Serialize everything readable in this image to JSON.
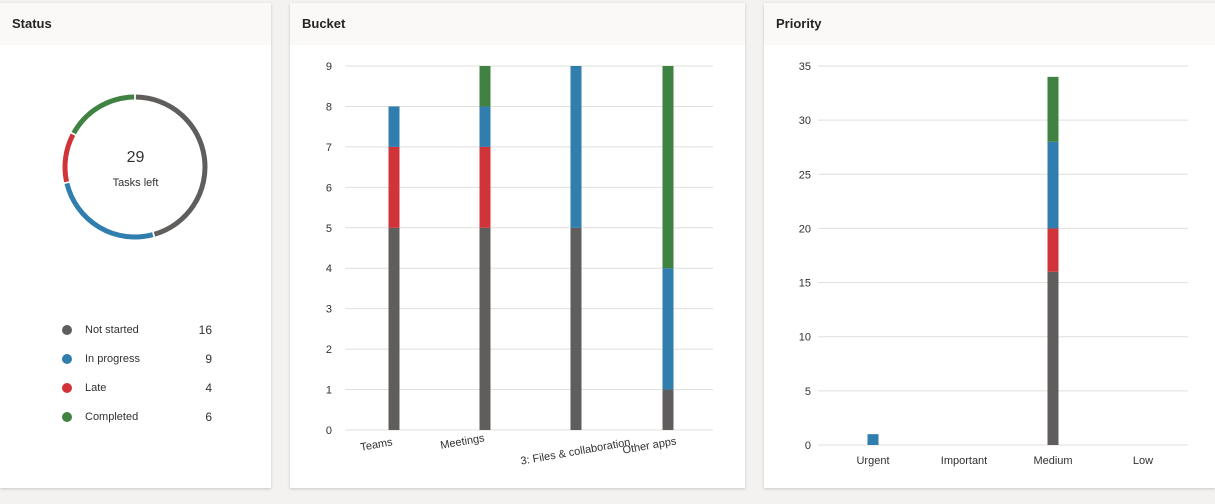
{
  "status_card": {
    "title": "Status",
    "center_value": "29",
    "center_label": "Tasks left",
    "legend": [
      {
        "label": "Not started",
        "count": "16",
        "color": "#605e5c"
      },
      {
        "label": "In progress",
        "count": "9",
        "color": "#2f7ead"
      },
      {
        "label": "Late",
        "count": "4",
        "color": "#d13438"
      },
      {
        "label": "Completed",
        "count": "6",
        "color": "#3f8241"
      }
    ]
  },
  "bucket_card": {
    "title": "Bucket"
  },
  "priority_card": {
    "title": "Priority"
  },
  "chart_data": [
    {
      "type": "pie",
      "title": "Status",
      "categories": [
        "Not started",
        "In progress",
        "Late",
        "Completed"
      ],
      "values": [
        16,
        9,
        4,
        6
      ],
      "colors": [
        "#605e5c",
        "#2f7ead",
        "#d13438",
        "#3f8241"
      ]
    },
    {
      "type": "bar",
      "stacked": true,
      "title": "Bucket",
      "categories": [
        "Teams",
        "Meetings",
        "3: Files & collaboration",
        "Other apps"
      ],
      "ylim": [
        0,
        9
      ],
      "yticks": [
        "0",
        "1",
        "2",
        "3",
        "4",
        "5",
        "6",
        "7",
        "8",
        "9"
      ],
      "series": [
        {
          "name": "Not started",
          "color": "#605e5c",
          "values": [
            5,
            5,
            5,
            1
          ]
        },
        {
          "name": "Late",
          "color": "#d13438",
          "values": [
            2,
            2,
            0,
            0
          ]
        },
        {
          "name": "In progress",
          "color": "#2f7ead",
          "values": [
            1,
            1,
            4,
            3
          ]
        },
        {
          "name": "Completed",
          "color": "#3f8241",
          "values": [
            0,
            1,
            0,
            5
          ]
        }
      ]
    },
    {
      "type": "bar",
      "stacked": true,
      "title": "Priority",
      "categories": [
        "Urgent",
        "Important",
        "Medium",
        "Low"
      ],
      "ylim": [
        0,
        35
      ],
      "yticks": [
        "0",
        "5",
        "10",
        "15",
        "20",
        "25",
        "30",
        "35"
      ],
      "series": [
        {
          "name": "Not started",
          "color": "#605e5c",
          "values": [
            0,
            0,
            16,
            0
          ]
        },
        {
          "name": "Late",
          "color": "#d13438",
          "values": [
            0,
            0,
            4,
            0
          ]
        },
        {
          "name": "In progress",
          "color": "#2f7ead",
          "values": [
            1,
            0,
            8,
            0
          ]
        },
        {
          "name": "Completed",
          "color": "#3f8241",
          "values": [
            0,
            0,
            6,
            0
          ]
        }
      ]
    }
  ]
}
